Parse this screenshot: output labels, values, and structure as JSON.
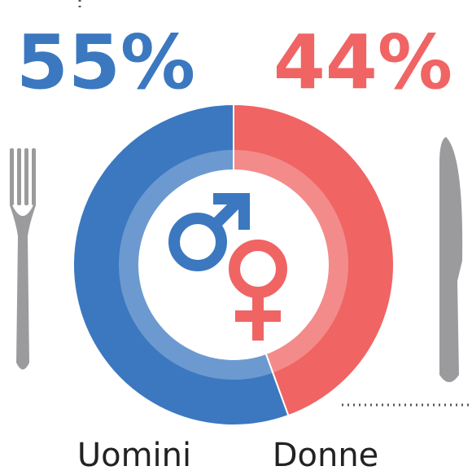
{
  "chart_data": {
    "type": "pie",
    "categories": [
      "Uomini",
      "Donne"
    ],
    "values": [
      55,
      44
    ],
    "value_labels": [
      "55%",
      "44%"
    ],
    "colors": [
      "#3b78c0",
      "#f06464"
    ]
  }
}
